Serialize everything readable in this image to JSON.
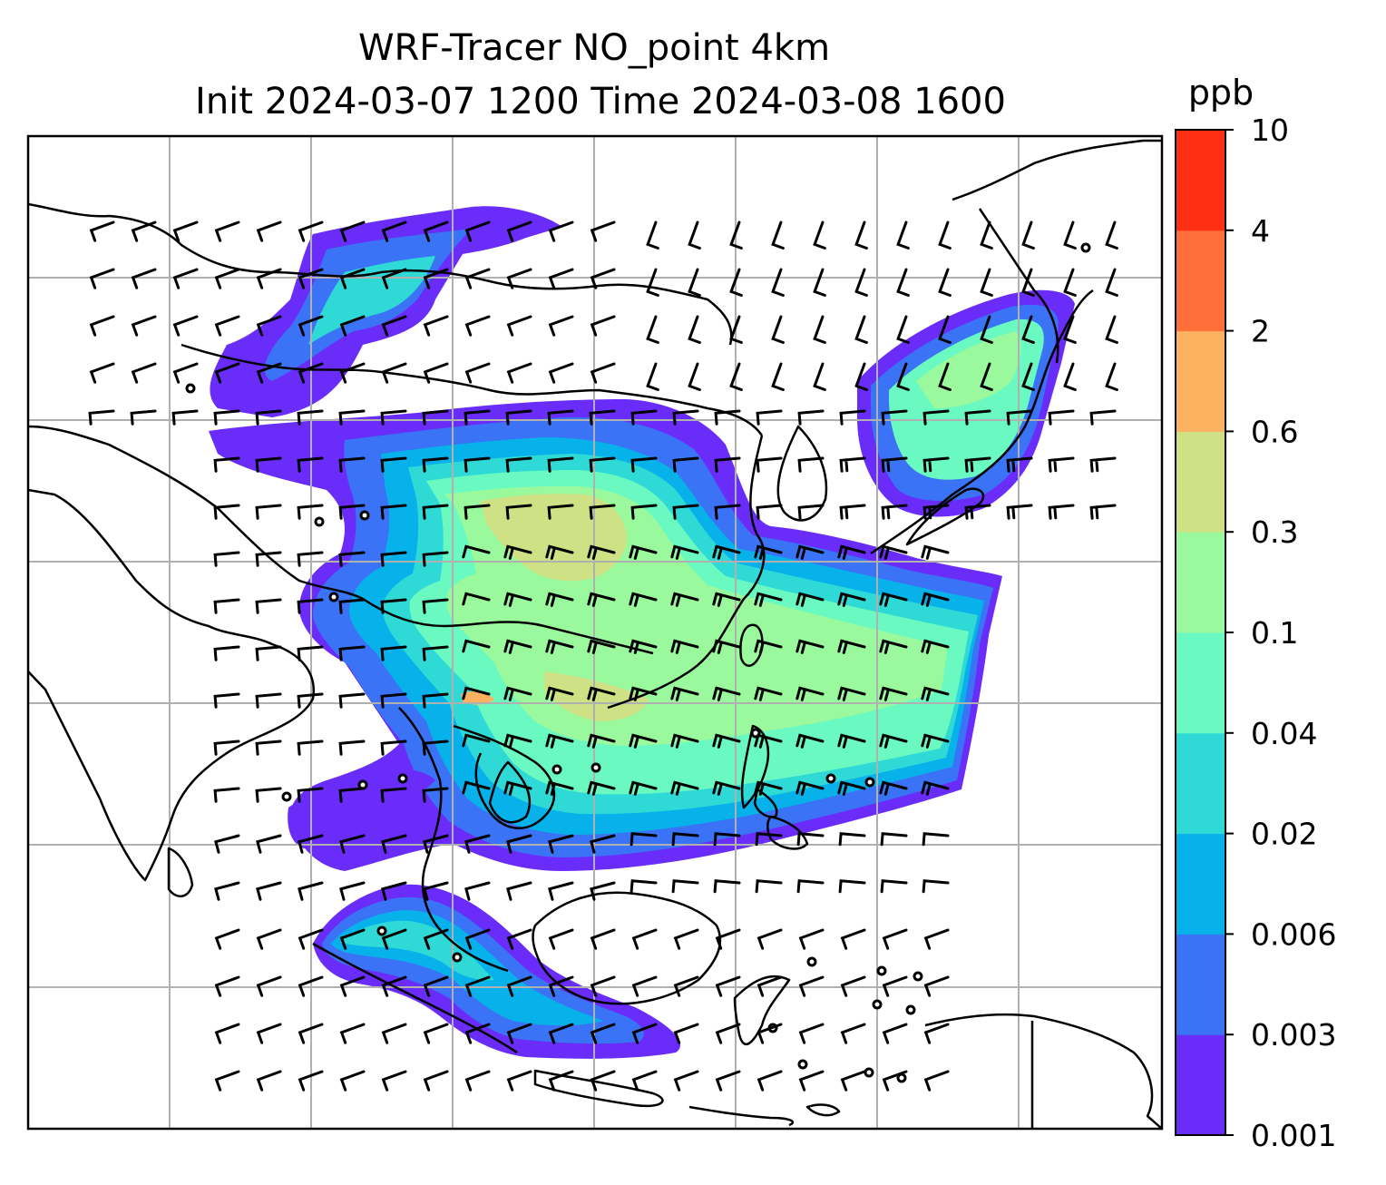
{
  "title": {
    "line1": "WRF-Tracer NO_point 4km",
    "line2": "Init 2024-03-07 1200 Time 2024-03-08 1600"
  },
  "colorbar": {
    "unit": "ppb",
    "levels": [
      "0.001",
      "0.003",
      "0.006",
      "0.02",
      "0.04",
      "0.1",
      "0.3",
      "0.6",
      "2",
      "4",
      "10"
    ],
    "colors": [
      "#6a2cf9",
      "#3a73f5",
      "#07b1ea",
      "#2fdad6",
      "#6afac1",
      "#9bf99d",
      "#cfe185",
      "#fdb261",
      "#fe6f3a",
      "#fe2f15"
    ]
  },
  "map": {
    "gridline_color": "#b0b0b0",
    "coastline_color": "#000000",
    "barb_color": "#000000",
    "fields": "tracer concentration contours with wind barbs"
  }
}
